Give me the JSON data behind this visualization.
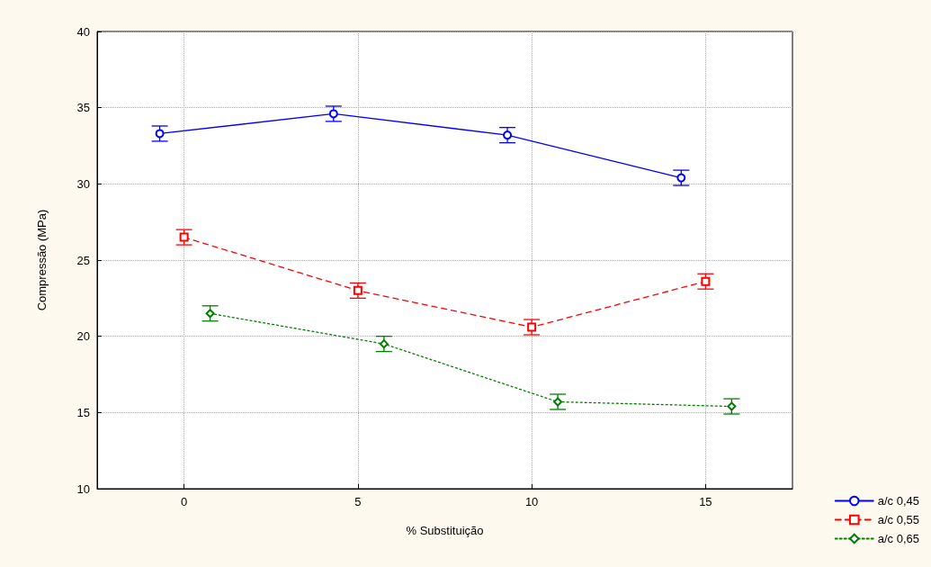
{
  "chart_data": {
    "type": "line",
    "xlabel": "% Substituição",
    "ylabel": "Compressão (MPa)",
    "xlim": [
      -2.5,
      17.5
    ],
    "xticks": [
      0,
      5,
      10,
      15
    ],
    "ylim": [
      10,
      40
    ],
    "yticks": [
      10,
      15,
      20,
      25,
      30,
      35,
      40
    ],
    "grid": true,
    "legend": "bottom right",
    "series": [
      {
        "name": "a/c 0,45",
        "color": "#0000ff",
        "marker": "circle",
        "line_style": "solid",
        "x": [
          -0.7,
          4.3,
          9.3,
          14.3
        ],
        "values": [
          33.3,
          34.6,
          33.2,
          30.4
        ],
        "errors": [
          0.5,
          0.5,
          0.5,
          0.5
        ]
      },
      {
        "name": "a/c 0,55",
        "color": "#ff0000",
        "marker": "square",
        "line_style": "dashed",
        "x": [
          0,
          5,
          10,
          15
        ],
        "values": [
          26.5,
          23.0,
          20.6,
          23.6
        ],
        "errors": [
          0.5,
          0.5,
          0.5,
          0.5
        ]
      },
      {
        "name": "a/c 0,65",
        "color": "#008000",
        "marker": "diamond",
        "line_style": "dotted",
        "x": [
          0.75,
          5.75,
          10.75,
          15.75
        ],
        "values": [
          21.5,
          19.5,
          15.7,
          15.4
        ],
        "errors": [
          0.5,
          0.5,
          0.5,
          0.5
        ]
      }
    ]
  }
}
